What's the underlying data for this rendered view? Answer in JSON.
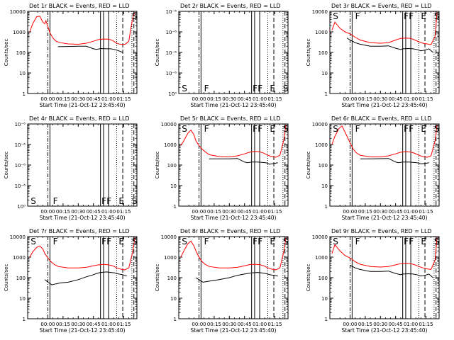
{
  "chart_data": [
    {
      "type": "line",
      "title": "Det 1r BLACK = Events, RED = LLD",
      "xlabel": "Start Time (21-Oct-12 23:45:40)",
      "ylabel": "Counts/sec",
      "yscale": "log",
      "ylim": [
        1,
        10000
      ],
      "y_ticks": [
        "1",
        "10",
        "100",
        "1000",
        "10000"
      ],
      "x_ticks": [
        "00:00",
        "00:15",
        "00:30",
        "00:45",
        "01:00",
        "01:15"
      ],
      "markers": [
        "",
        "",
        "",
        "",
        "",
        "S"
      ],
      "vlines": {
        "dash_dot": [
          0
        ],
        "solid": [
          2,
          52,
          55,
          60
        ],
        "dotted": [
          68,
          83
        ],
        "dashed": [
          74,
          85
        ]
      },
      "series": [
        {
          "color": "#ff0000",
          "x": [
            -18,
            -15,
            -11,
            -8,
            -5,
            -3,
            -2,
            0,
            2,
            5,
            8,
            12,
            20,
            30,
            38,
            45,
            50,
            55,
            60,
            64,
            67,
            70,
            74,
            77,
            80,
            82,
            84,
            86
          ],
          "values": [
            1000,
            2500,
            5500,
            5800,
            3000,
            2500,
            3500,
            1800,
            900,
            500,
            350,
            300,
            260,
            250,
            280,
            350,
            420,
            450,
            440,
            380,
            300,
            260,
            240,
            260,
            350,
            1500,
            5000,
            9000
          ]
        },
        {
          "color": "#000000",
          "x": [
            10,
            20,
            30,
            38,
            45,
            48,
            51,
            52,
            58,
            62,
            66,
            70,
            74
          ],
          "values": [
            190,
            195,
            200,
            200,
            150,
            140,
            150,
            155,
            150,
            150,
            140,
            120,
            100
          ]
        }
      ]
    },
    {
      "type": "line",
      "title": "Det 2r BLACK = Events, RED = LLD",
      "xlabel": "Start Time (21-Oct-12 23:45:40)",
      "ylabel": "Counts/sec",
      "yscale": "log",
      "ylim": [
        1,
        10
      ],
      "y_ticks": [
        "10⁰",
        "10⁻⁶",
        "10⁻⁶",
        "10⁻⁶",
        "10⁻⁶"
      ],
      "x_ticks": [
        "00:00",
        "00:15",
        "00:30",
        "00:45",
        "01:00",
        "01:15"
      ],
      "markers": [
        "S",
        "F",
        "F",
        "F",
        "E",
        "S"
      ],
      "vlines": {
        "dash_dot": [
          0
        ],
        "solid": [
          2,
          52,
          55,
          60
        ],
        "dotted": [
          68,
          83
        ],
        "dashed": [
          74,
          85
        ]
      },
      "series": []
    },
    {
      "type": "line",
      "title": "Det 3r BLACK = Events, RED = LLD",
      "xlabel": "Start Time (21-Oct-12 23:45:40)",
      "ylabel": "Counts/sec",
      "yscale": "log",
      "ylim": [
        1,
        10000
      ],
      "y_ticks": [
        "1",
        "10",
        "100",
        "1000",
        "10000"
      ],
      "x_ticks": [
        "00:00",
        "00:15",
        "00:30",
        "00:45",
        "01:00",
        "01:15"
      ],
      "markers": [
        "S",
        "F",
        "F",
        "F",
        "E",
        "S"
      ],
      "vlines": {
        "dash_dot": [
          0
        ],
        "solid": [
          2,
          52,
          55,
          60
        ],
        "dotted": [
          68,
          83
        ],
        "dashed": [
          74,
          85
        ]
      },
      "series": [
        {
          "color": "#ff0000",
          "x": [
            -18,
            -15,
            -10,
            -5,
            0,
            5,
            10,
            20,
            30,
            38,
            45,
            50,
            55,
            60,
            64,
            68,
            72,
            76,
            80,
            84,
            86
          ],
          "values": [
            1200,
            3000,
            1500,
            1000,
            800,
            550,
            400,
            300,
            280,
            300,
            400,
            480,
            500,
            480,
            400,
            330,
            280,
            260,
            240,
            600,
            9000
          ]
        },
        {
          "color": "#000000",
          "x": [
            -3,
            0,
            5,
            10,
            20,
            30,
            38,
            45,
            50,
            52,
            58,
            62,
            66,
            70,
            74,
            78,
            82
          ],
          "values": [
            500,
            400,
            300,
            250,
            200,
            200,
            210,
            160,
            140,
            150,
            155,
            150,
            140,
            120,
            130,
            150,
            100
          ]
        }
      ]
    },
    {
      "type": "line",
      "title": "Det 4r BLACK = Events, RED = LLD",
      "xlabel": "Start Time (21-Oct-12 23:45:40)",
      "ylabel": "Counts/sec",
      "yscale": "log",
      "ylim": [
        1,
        10
      ],
      "y_ticks": [
        "10⁰",
        "10⁻⁶",
        "10⁻⁶",
        "10⁻⁶",
        "10⁻⁶"
      ],
      "x_ticks": [
        "00:00",
        "00:15",
        "00:30",
        "00:45",
        "01:00",
        "01:15"
      ],
      "markers": [
        "S",
        "F",
        "F",
        "F",
        "E",
        "S"
      ],
      "vlines": {
        "dash_dot": [
          0
        ],
        "solid": [
          2,
          52,
          55,
          60
        ],
        "dotted": [
          68,
          83
        ],
        "dashed": [
          74,
          85
        ]
      },
      "series": []
    },
    {
      "type": "line",
      "title": "Det 5r BLACK = Events, RED = LLD",
      "xlabel": "Start Time (21-Oct-12 23:45:40)",
      "ylabel": "Counts/sec",
      "yscale": "log",
      "ylim": [
        1,
        10000
      ],
      "y_ticks": [
        "1",
        "10",
        "100",
        "1000",
        "10000"
      ],
      "x_ticks": [
        "00:00",
        "00:15",
        "00:30",
        "00:45",
        "01:00",
        "01:15"
      ],
      "markers": [
        "S",
        "F",
        "F",
        "F",
        "E",
        "S"
      ],
      "vlines": {
        "dash_dot": [
          0
        ],
        "solid": [
          2,
          52,
          55,
          60
        ],
        "dotted": [
          68,
          83
        ],
        "dashed": [
          74,
          85
        ]
      },
      "series": [
        {
          "color": "#ff0000",
          "x": [
            -18,
            -15,
            -11,
            -8,
            -5,
            -3,
            0,
            3,
            6,
            10,
            20,
            30,
            38,
            45,
            50,
            55,
            60,
            64,
            68,
            72,
            76,
            80,
            84,
            86
          ],
          "values": [
            900,
            1500,
            3500,
            5000,
            3000,
            1500,
            900,
            600,
            450,
            320,
            260,
            250,
            280,
            350,
            420,
            460,
            440,
            380,
            300,
            260,
            240,
            300,
            1800,
            9000
          ]
        },
        {
          "color": "#000000",
          "x": [
            10,
            20,
            30,
            38,
            45,
            48,
            52,
            58,
            62,
            66,
            70,
            74,
            78
          ],
          "values": [
            200,
            200,
            200,
            210,
            140,
            130,
            140,
            140,
            135,
            130,
            110,
            120,
            130
          ]
        }
      ]
    },
    {
      "type": "line",
      "title": "Det 6r BLACK = Events, RED = LLD",
      "xlabel": "Start Time (21-Oct-12 23:45:40)",
      "ylabel": "Counts/sec",
      "yscale": "log",
      "ylim": [
        1,
        10000
      ],
      "y_ticks": [
        "1",
        "10",
        "100",
        "1000",
        "10000"
      ],
      "x_ticks": [
        "00:00",
        "00:15",
        "00:30",
        "00:45",
        "01:00",
        "01:15"
      ],
      "markers": [
        "S",
        "F",
        "F",
        "F",
        "E",
        "S"
      ],
      "vlines": {
        "dash_dot": [
          0
        ],
        "solid": [
          2,
          52,
          55,
          60
        ],
        "dotted": [
          68,
          83
        ],
        "dashed": [
          74,
          85
        ]
      },
      "series": [
        {
          "color": "#ff0000",
          "x": [
            -18,
            -15,
            -11,
            -8,
            -5,
            -3,
            0,
            3,
            6,
            10,
            20,
            30,
            38,
            45,
            50,
            55,
            60,
            64,
            68,
            72,
            76,
            80,
            84,
            86
          ],
          "values": [
            1000,
            2500,
            6000,
            8000,
            4000,
            2500,
            1200,
            600,
            400,
            300,
            250,
            250,
            280,
            350,
            420,
            450,
            430,
            370,
            300,
            260,
            240,
            280,
            1500,
            9000
          ]
        },
        {
          "color": "#000000",
          "x": [
            10,
            20,
            30,
            38,
            45,
            48,
            52,
            58,
            62,
            66,
            70,
            74,
            78
          ],
          "values": [
            200,
            200,
            205,
            210,
            140,
            130,
            140,
            140,
            135,
            130,
            115,
            120,
            130
          ]
        }
      ]
    },
    {
      "type": "line",
      "title": "Det 7r BLACK = Events, RED = LLD",
      "xlabel": "Start Time (21-Oct-12 23:45:40)",
      "ylabel": "Counts/sec",
      "yscale": "log",
      "ylim": [
        1,
        10000
      ],
      "y_ticks": [
        "1",
        "10",
        "100",
        "1000",
        "10000"
      ],
      "x_ticks": [
        "00:00",
        "00:15",
        "00:30",
        "00:45",
        "01:00",
        "01:15"
      ],
      "markers": [
        "S",
        "F",
        "F",
        "F",
        "E",
        "S"
      ],
      "vlines": {
        "dash_dot": [
          0
        ],
        "solid": [
          2,
          52,
          55,
          60
        ],
        "dotted": [
          68,
          83
        ],
        "dashed": [
          74,
          85
        ]
      },
      "series": [
        {
          "color": "#ff0000",
          "x": [
            -18,
            -15,
            -11,
            -8,
            -5,
            -3,
            0,
            3,
            6,
            10,
            20,
            30,
            38,
            45,
            50,
            55,
            60,
            64,
            68,
            72,
            76,
            80,
            84,
            86
          ],
          "values": [
            1000,
            1800,
            3000,
            3500,
            2500,
            1500,
            900,
            600,
            450,
            350,
            300,
            300,
            320,
            380,
            420,
            440,
            420,
            380,
            300,
            260,
            240,
            300,
            2000,
            9000
          ]
        },
        {
          "color": "#000000",
          "x": [
            -3,
            0,
            4,
            8,
            12,
            20,
            30,
            38,
            45,
            48,
            52,
            58,
            62,
            66,
            70,
            74,
            78
          ],
          "values": [
            80,
            60,
            45,
            50,
            55,
            60,
            80,
            110,
            140,
            160,
            180,
            190,
            180,
            170,
            150,
            140,
            120
          ]
        }
      ]
    },
    {
      "type": "line",
      "title": "Det 8r BLACK = Events, RED = LLD",
      "xlabel": "Start Time (21-Oct-12 23:45:40)",
      "ylabel": "Counts/sec",
      "yscale": "log",
      "ylim": [
        1,
        10000
      ],
      "y_ticks": [
        "1",
        "10",
        "100",
        "1000",
        "10000"
      ],
      "x_ticks": [
        "00:00",
        "00:15",
        "00:30",
        "00:45",
        "01:00",
        "01:15"
      ],
      "markers": [
        "S",
        "F",
        "F",
        "F",
        "E",
        "S"
      ],
      "vlines": {
        "dash_dot": [
          0
        ],
        "solid": [
          2,
          52,
          55,
          60
        ],
        "dotted": [
          68,
          83
        ],
        "dashed": [
          74,
          85
        ]
      },
      "series": [
        {
          "color": "#ff0000",
          "x": [
            -18,
            -15,
            -11,
            -8,
            -5,
            -3,
            0,
            3,
            6,
            10,
            20,
            30,
            38,
            45,
            50,
            55,
            60,
            64,
            68,
            72,
            76,
            80,
            84,
            86
          ],
          "values": [
            1000,
            2000,
            4500,
            6000,
            3500,
            2000,
            1000,
            600,
            450,
            350,
            300,
            300,
            320,
            380,
            430,
            450,
            430,
            380,
            300,
            260,
            240,
            300,
            2000,
            9000
          ]
        },
        {
          "color": "#000000",
          "x": [
            -3,
            0,
            4,
            8,
            12,
            20,
            30,
            38,
            45,
            48,
            52,
            58,
            62,
            66,
            70,
            74,
            78
          ],
          "values": [
            100,
            80,
            60,
            65,
            70,
            80,
            100,
            130,
            150,
            160,
            170,
            180,
            170,
            160,
            140,
            130,
            120
          ]
        }
      ]
    },
    {
      "type": "line",
      "title": "Det 9r BLACK = Events, RED = LLD",
      "xlabel": "Start Time (21-Oct-12 23:45:40)",
      "ylabel": "Counts/sec",
      "yscale": "log",
      "ylim": [
        1,
        10000
      ],
      "y_ticks": [
        "1",
        "10",
        "100",
        "1000",
        "10000"
      ],
      "x_ticks": [
        "00:00",
        "00:15",
        "00:30",
        "00:45",
        "01:00",
        "01:15"
      ],
      "markers": [
        "S",
        "F",
        "F",
        "F",
        "E",
        "S"
      ],
      "vlines": {
        "dash_dot": [
          0
        ],
        "solid": [
          2,
          52,
          55,
          60
        ],
        "dotted": [
          68,
          83
        ],
        "dashed": [
          74,
          85
        ]
      },
      "series": [
        {
          "color": "#ff0000",
          "x": [
            -18,
            -15,
            -10,
            -5,
            0,
            5,
            10,
            20,
            30,
            38,
            45,
            50,
            55,
            60,
            64,
            68,
            72,
            76,
            80,
            84,
            86
          ],
          "values": [
            1500,
            4000,
            2000,
            1200,
            900,
            600,
            450,
            350,
            330,
            350,
            420,
            480,
            500,
            480,
            420,
            350,
            300,
            270,
            250,
            700,
            9000
          ]
        },
        {
          "color": "#000000",
          "x": [
            0,
            5,
            10,
            20,
            30,
            38,
            45,
            50,
            52,
            58,
            62,
            66,
            70,
            74,
            78,
            82
          ],
          "values": [
            400,
            300,
            250,
            200,
            200,
            210,
            160,
            140,
            150,
            155,
            150,
            140,
            120,
            130,
            150,
            100
          ]
        }
      ]
    }
  ]
}
